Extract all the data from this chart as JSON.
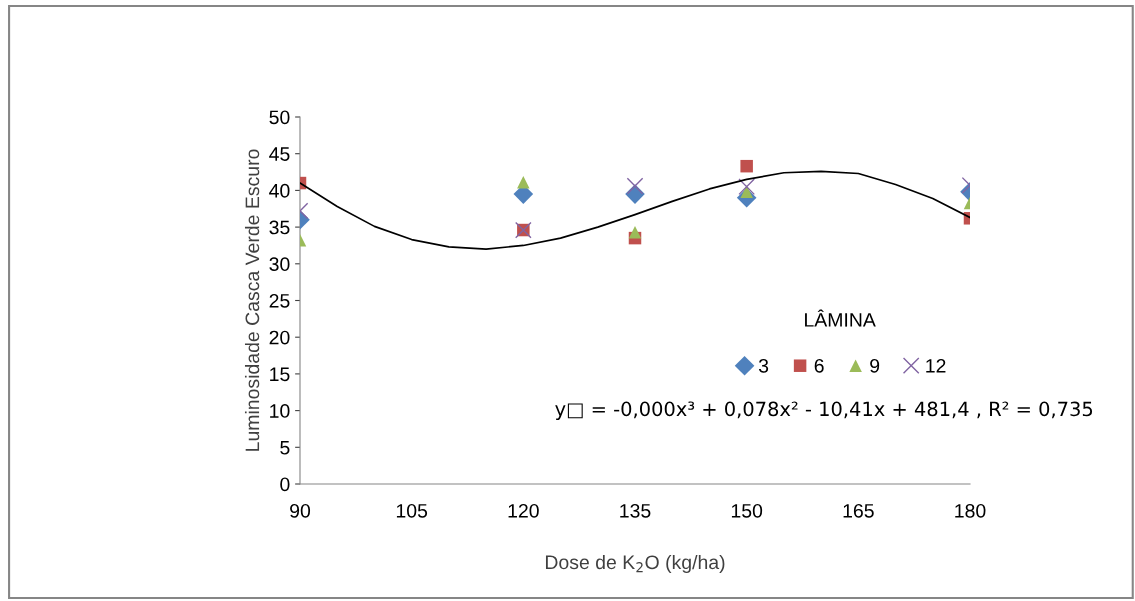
{
  "chart_data": {
    "type": "scatter",
    "xlabel": "Dose de K$_{2}$O (kg/ha)",
    "ylabel": "Luminosidade Casca Verde Escuro",
    "x": [
      90,
      120,
      135,
      150,
      180
    ],
    "xlim": [
      90,
      180
    ],
    "xticks": [
      90,
      105,
      120,
      135,
      150,
      165,
      180
    ],
    "ylim": [
      0,
      50
    ],
    "yticks": [
      0,
      5,
      10,
      15,
      20,
      25,
      30,
      35,
      40,
      45,
      50
    ],
    "grid": false,
    "legend": "right",
    "legend_title": "LÂMINA",
    "annotations": [
      "y□ = -0,000x³ + 0,078x² - 10,41x + 481,4 , R² = 0,735"
    ],
    "series": [
      {
        "name": "3",
        "color": "#4f81bd",
        "marker": "diamond",
        "values": [
          36.0,
          39.5,
          39.5,
          39.0,
          39.8
        ]
      },
      {
        "name": "6",
        "color": "#c0504d",
        "marker": "square",
        "values": [
          41.0,
          34.6,
          33.5,
          43.3,
          36.2
        ]
      },
      {
        "name": "9",
        "color": "#9bbb59",
        "marker": "triangle",
        "values": [
          33.2,
          41.1,
          34.3,
          39.8,
          38.3
        ]
      },
      {
        "name": "12",
        "color": "#8064a2",
        "marker": "cross",
        "values": [
          37.2,
          34.6,
          40.6,
          40.5,
          40.7
        ]
      },
      {
        "type": "line",
        "color": "#000000",
        "marker": "none",
        "x": [
          90,
          95,
          100,
          105,
          110,
          115,
          120,
          125,
          130,
          135,
          140,
          145,
          150,
          155,
          160,
          165,
          170,
          175,
          180
        ],
        "values": [
          41.0,
          37.8,
          35.1,
          33.3,
          32.3,
          32.0,
          32.5,
          33.5,
          35.0,
          36.7,
          38.5,
          40.2,
          41.5,
          42.4,
          42.6,
          42.3,
          40.8,
          38.9,
          36.3
        ]
      }
    ]
  }
}
